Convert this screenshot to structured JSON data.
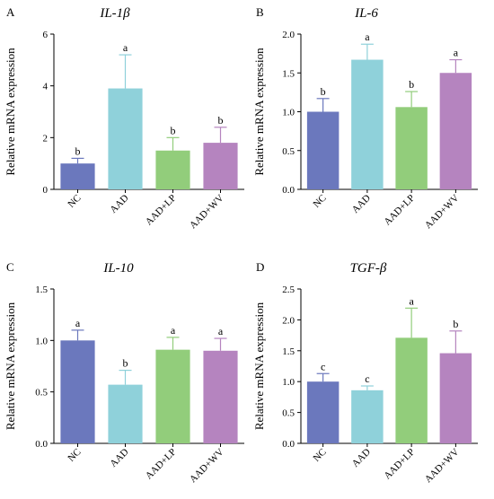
{
  "chart_data": [
    {
      "type": "bar",
      "panel": "A",
      "title": "IL-1β",
      "ylabel": "Relative mRNA expression",
      "xlabel": "",
      "ylim": [
        0,
        6
      ],
      "yticks": [
        "0",
        "2",
        "4",
        "6"
      ],
      "categories": [
        "NC",
        "AAD",
        "AAD+LP",
        "AAD+WV"
      ],
      "values": [
        1.0,
        3.9,
        1.5,
        1.8
      ],
      "errors": [
        0.2,
        1.3,
        0.5,
        0.6
      ],
      "significance": [
        "b",
        "a",
        "b",
        "b"
      ],
      "colors": [
        "#6b78bd",
        "#8fd1da",
        "#92cd7b",
        "#b584bf"
      ]
    },
    {
      "type": "bar",
      "panel": "B",
      "title": "IL-6",
      "ylabel": "Relative mRNA expression",
      "xlabel": "",
      "ylim": [
        0,
        2
      ],
      "yticks": [
        "0.0",
        "0.5",
        "1.0",
        "1.5",
        "2.0"
      ],
      "categories": [
        "NC",
        "AAD",
        "AAD+LP",
        "AAD+WV"
      ],
      "values": [
        1.0,
        1.67,
        1.06,
        1.5
      ],
      "errors": [
        0.17,
        0.2,
        0.2,
        0.17
      ],
      "significance": [
        "b",
        "a",
        "b",
        "a"
      ],
      "colors": [
        "#6b78bd",
        "#8fd1da",
        "#92cd7b",
        "#b584bf"
      ]
    },
    {
      "type": "bar",
      "panel": "C",
      "title": "IL-10",
      "ylabel": "Relative mRNA expression",
      "xlabel": "",
      "ylim": [
        0,
        1.5
      ],
      "yticks": [
        "0.0",
        "0.5",
        "1.0",
        "1.5"
      ],
      "categories": [
        "NC",
        "AAD",
        "AAD+LP",
        "AAD+WV"
      ],
      "values": [
        1.0,
        0.57,
        0.91,
        0.9
      ],
      "errors": [
        0.1,
        0.14,
        0.12,
        0.12
      ],
      "significance": [
        "a",
        "b",
        "a",
        "a"
      ],
      "colors": [
        "#6b78bd",
        "#8fd1da",
        "#92cd7b",
        "#b584bf"
      ]
    },
    {
      "type": "bar",
      "panel": "D",
      "title": "TGF-β",
      "ylabel": "Relative mRNA expression",
      "xlabel": "",
      "ylim": [
        0,
        2.5
      ],
      "yticks": [
        "0.0",
        "0.5",
        "1.0",
        "1.5",
        "2.0",
        "2.5"
      ],
      "categories": [
        "NC",
        "AAD",
        "AAD+LP",
        "AAD+WV"
      ],
      "values": [
        1.0,
        0.86,
        1.71,
        1.46
      ],
      "errors": [
        0.13,
        0.07,
        0.48,
        0.36
      ],
      "significance": [
        "c",
        "c",
        "a",
        "b"
      ],
      "colors": [
        "#6b78bd",
        "#8fd1da",
        "#92cd7b",
        "#b584bf"
      ]
    }
  ]
}
